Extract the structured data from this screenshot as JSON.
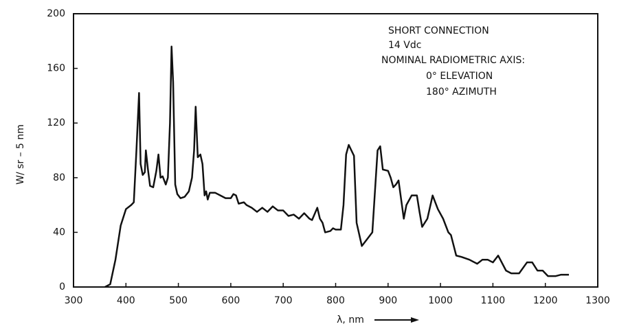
{
  "chart_data": {
    "type": "line",
    "xlabel": "λ, nm",
    "ylabel": "W/ sr – 5 nm",
    "annotations": [
      "SHORT CONNECTION",
      "14 Vdc",
      "NOMINAL RADIOMETRIC AXIS:",
      "0° ELEVATION",
      "180° AZIMUTH"
    ],
    "x": [
      360,
      370,
      380,
      390,
      400,
      410,
      415,
      420,
      425,
      428,
      432,
      436,
      438,
      442,
      446,
      452,
      458,
      462,
      466,
      470,
      476,
      480,
      484,
      487,
      490,
      494,
      498,
      504,
      512,
      520,
      526,
      530,
      533,
      537,
      542,
      546,
      550,
      553,
      556,
      560,
      570,
      580,
      590,
      600,
      605,
      610,
      615,
      625,
      630,
      640,
      650,
      660,
      670,
      680,
      690,
      700,
      710,
      720,
      730,
      740,
      750,
      755,
      765,
      770,
      775,
      780,
      790,
      795,
      800,
      810,
      815,
      820,
      825,
      830,
      835,
      840,
      850,
      860,
      870,
      880,
      885,
      890,
      900,
      905,
      910,
      915,
      920,
      930,
      935,
      945,
      955,
      960,
      965,
      975,
      985,
      995,
      1005,
      1015,
      1020,
      1030,
      1040,
      1055,
      1070,
      1080,
      1090,
      1100,
      1110,
      1125,
      1135,
      1150,
      1165,
      1175,
      1185,
      1195,
      1205,
      1220,
      1230,
      1245
    ],
    "series": [
      {
        "color": "#111111",
        "values": [
          0,
          2,
          20,
          45,
          57,
          60,
          62,
          100,
          142,
          90,
          82,
          84,
          100,
          86,
          74,
          73,
          85,
          97,
          80,
          81,
          75,
          80,
          120,
          176,
          150,
          75,
          68,
          65,
          66,
          70,
          80,
          100,
          132,
          95,
          97,
          90,
          67,
          70,
          64,
          69,
          69,
          67,
          65,
          65,
          68,
          67,
          61,
          62,
          60,
          58,
          55,
          58,
          55,
          59,
          56,
          56,
          52,
          53,
          50,
          54,
          50,
          49,
          58,
          50,
          47,
          40,
          41,
          43,
          42,
          42,
          60,
          97,
          104,
          100,
          96,
          47,
          30,
          35,
          40,
          100,
          103,
          86,
          85,
          80,
          73,
          75,
          78,
          50,
          60,
          67,
          67,
          55,
          44,
          50,
          67,
          57,
          50,
          40,
          38,
          23,
          22,
          20,
          17,
          20,
          20,
          18,
          23,
          12,
          10,
          10,
          18,
          18,
          12,
          12,
          8,
          8,
          9,
          9
        ]
      }
    ],
    "xlim": [
      300,
      1300
    ],
    "xticks": [
      300,
      400,
      500,
      600,
      700,
      800,
      900,
      1000,
      1100,
      1200,
      1300
    ],
    "ylim": [
      0,
      200
    ],
    "yticks": [
      0,
      40,
      80,
      120,
      160,
      200
    ]
  }
}
